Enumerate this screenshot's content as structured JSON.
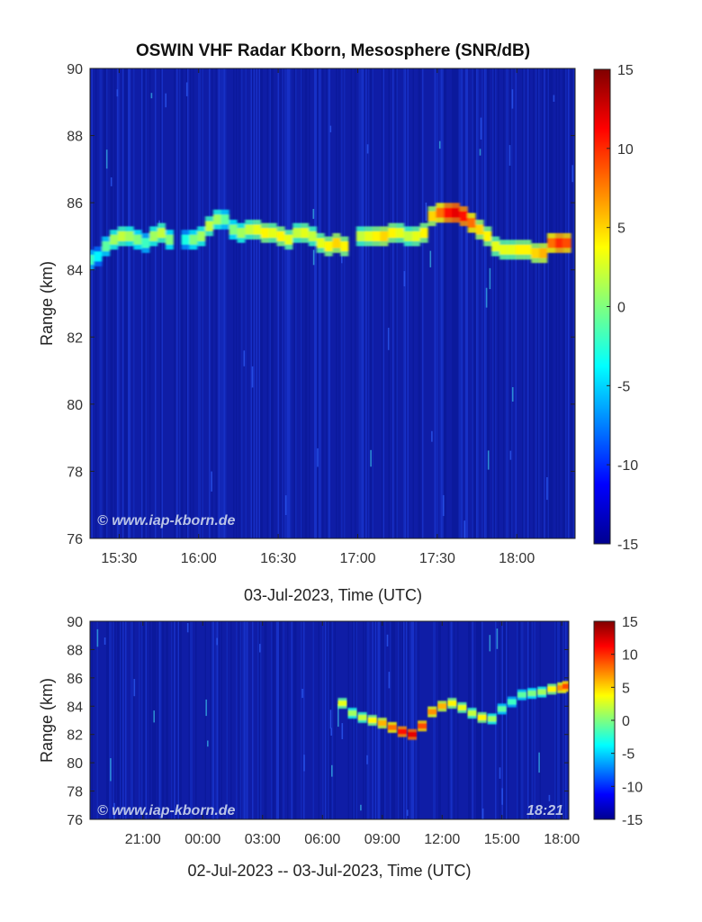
{
  "chart_data": [
    {
      "type": "heatmap",
      "title": "OSWIN VHF Radar Kborn, Mesosphere (SNR/dB)",
      "xlabel": "03-Jul-2023, Time (UTC)",
      "ylabel": "Range (km)",
      "x_ticks": [
        "15:30",
        "16:00",
        "16:30",
        "17:00",
        "17:30",
        "18:00"
      ],
      "y_ticks": [
        "76",
        "78",
        "80",
        "82",
        "84",
        "86",
        "88",
        "90"
      ],
      "xlim": [
        "15:19",
        "18:22"
      ],
      "ylim": [
        76,
        90
      ],
      "colorbar": {
        "ticks": [
          "-15",
          "-10",
          "-5",
          "0",
          "5",
          "10",
          "15"
        ],
        "range": [
          -15,
          15
        ],
        "colormap": "jet"
      },
      "watermark": "© www.iap-kborn.de",
      "layer": [
        [
          "15:19",
          84.3,
          -2
        ],
        [
          "15:22",
          84.4,
          -4
        ],
        [
          "15:25",
          84.7,
          -1
        ],
        [
          "15:28",
          84.9,
          1
        ],
        [
          "15:31",
          85.0,
          2
        ],
        [
          "15:34",
          85.0,
          1
        ],
        [
          "15:37",
          84.9,
          0
        ],
        [
          "15:40",
          84.8,
          -2
        ],
        [
          "15:43",
          85.0,
          1
        ],
        [
          "15:46",
          85.1,
          2
        ],
        [
          "15:49",
          84.9,
          0
        ],
        [
          "15:55",
          84.9,
          -3
        ],
        [
          "15:58",
          84.9,
          0
        ],
        [
          "16:01",
          85.0,
          1
        ],
        [
          "16:04",
          85.3,
          2
        ],
        [
          "16:07",
          85.5,
          1
        ],
        [
          "16:10",
          85.5,
          -1
        ],
        [
          "16:13",
          85.2,
          0
        ],
        [
          "16:16",
          85.1,
          1
        ],
        [
          "16:19",
          85.2,
          2
        ],
        [
          "16:22",
          85.2,
          3
        ],
        [
          "16:25",
          85.1,
          4
        ],
        [
          "16:28",
          85.1,
          3
        ],
        [
          "16:31",
          85.0,
          4
        ],
        [
          "16:34",
          84.9,
          3
        ],
        [
          "16:37",
          85.1,
          2
        ],
        [
          "16:40",
          85.1,
          3
        ],
        [
          "16:43",
          85.0,
          2
        ],
        [
          "16:46",
          84.8,
          3
        ],
        [
          "16:49",
          84.7,
          4
        ],
        [
          "16:52",
          84.8,
          5
        ],
        [
          "16:55",
          84.7,
          4
        ],
        [
          "17:01",
          85.0,
          2
        ],
        [
          "17:04",
          85.0,
          3
        ],
        [
          "17:07",
          85.0,
          4
        ],
        [
          "17:10",
          85.0,
          5
        ],
        [
          "17:13",
          85.1,
          4
        ],
        [
          "17:16",
          85.1,
          3
        ],
        [
          "17:19",
          85.0,
          2
        ],
        [
          "17:22",
          85.0,
          3
        ],
        [
          "17:25",
          85.1,
          4
        ],
        [
          "17:28",
          85.6,
          5
        ],
        [
          "17:31",
          85.7,
          8
        ],
        [
          "17:34",
          85.7,
          11
        ],
        [
          "17:37",
          85.7,
          12
        ],
        [
          "17:40",
          85.6,
          11
        ],
        [
          "17:43",
          85.4,
          8
        ],
        [
          "17:46",
          85.2,
          5
        ],
        [
          "17:49",
          85.0,
          4
        ],
        [
          "17:52",
          84.7,
          3
        ],
        [
          "17:55",
          84.6,
          3
        ],
        [
          "17:58",
          84.6,
          3
        ],
        [
          "18:01",
          84.6,
          4
        ],
        [
          "18:04",
          84.6,
          4
        ],
        [
          "18:07",
          84.5,
          5
        ],
        [
          "18:10",
          84.5,
          6
        ],
        [
          "18:13",
          84.8,
          8
        ],
        [
          "18:16",
          84.8,
          10
        ],
        [
          "18:19",
          84.8,
          9
        ]
      ]
    },
    {
      "type": "heatmap",
      "xlabel": "02-Jul-2023 -- 03-Jul-2023, Time (UTC)",
      "ylabel": "Range (km)",
      "x_ticks": [
        "21:00",
        "00:00",
        "03:00",
        "06:00",
        "09:00",
        "12:00",
        "15:00",
        "18:00"
      ],
      "y_ticks": [
        "76",
        "78",
        "80",
        "82",
        "84",
        "86",
        "88",
        "90"
      ],
      "xlim": [
        "02-Jul-2023 18:21",
        "03-Jul-2023 18:21"
      ],
      "ylim": [
        76,
        90
      ],
      "colorbar": {
        "ticks": [
          "-15",
          "-10",
          "-5",
          "0",
          "5",
          "10",
          "15"
        ],
        "range": [
          -15,
          15
        ],
        "colormap": "jet"
      },
      "watermark": "© www.iap-kborn.de",
      "timestamp": "18:21",
      "layer": [
        [
          "03-Jul-2023 07:00",
          84.2,
          3
        ],
        [
          "03-Jul-2023 07:30",
          83.5,
          1
        ],
        [
          "03-Jul-2023 08:00",
          83.2,
          2
        ],
        [
          "03-Jul-2023 08:30",
          83.0,
          4
        ],
        [
          "03-Jul-2023 09:00",
          82.8,
          6
        ],
        [
          "03-Jul-2023 09:30",
          82.5,
          8
        ],
        [
          "03-Jul-2023 10:00",
          82.2,
          11
        ],
        [
          "03-Jul-2023 10:30",
          82.0,
          12
        ],
        [
          "03-Jul-2023 11:00",
          82.6,
          9
        ],
        [
          "03-Jul-2023 11:30",
          83.6,
          7
        ],
        [
          "03-Jul-2023 12:00",
          84.0,
          6
        ],
        [
          "03-Jul-2023 12:30",
          84.2,
          4
        ],
        [
          "03-Jul-2023 13:00",
          83.9,
          3
        ],
        [
          "03-Jul-2023 13:30",
          83.5,
          2
        ],
        [
          "03-Jul-2023 14:00",
          83.2,
          4
        ],
        [
          "03-Jul-2023 14:30",
          83.1,
          1
        ],
        [
          "03-Jul-2023 15:00",
          83.8,
          -1
        ],
        [
          "03-Jul-2023 15:30",
          84.3,
          -2
        ],
        [
          "03-Jul-2023 16:00",
          84.8,
          -1
        ],
        [
          "03-Jul-2023 16:30",
          84.9,
          0
        ],
        [
          "03-Jul-2023 17:00",
          85.0,
          1
        ],
        [
          "03-Jul-2023 17:30",
          85.2,
          4
        ],
        [
          "03-Jul-2023 18:00",
          85.3,
          7
        ],
        [
          "03-Jul-2023 18:15",
          85.4,
          9
        ]
      ]
    }
  ]
}
